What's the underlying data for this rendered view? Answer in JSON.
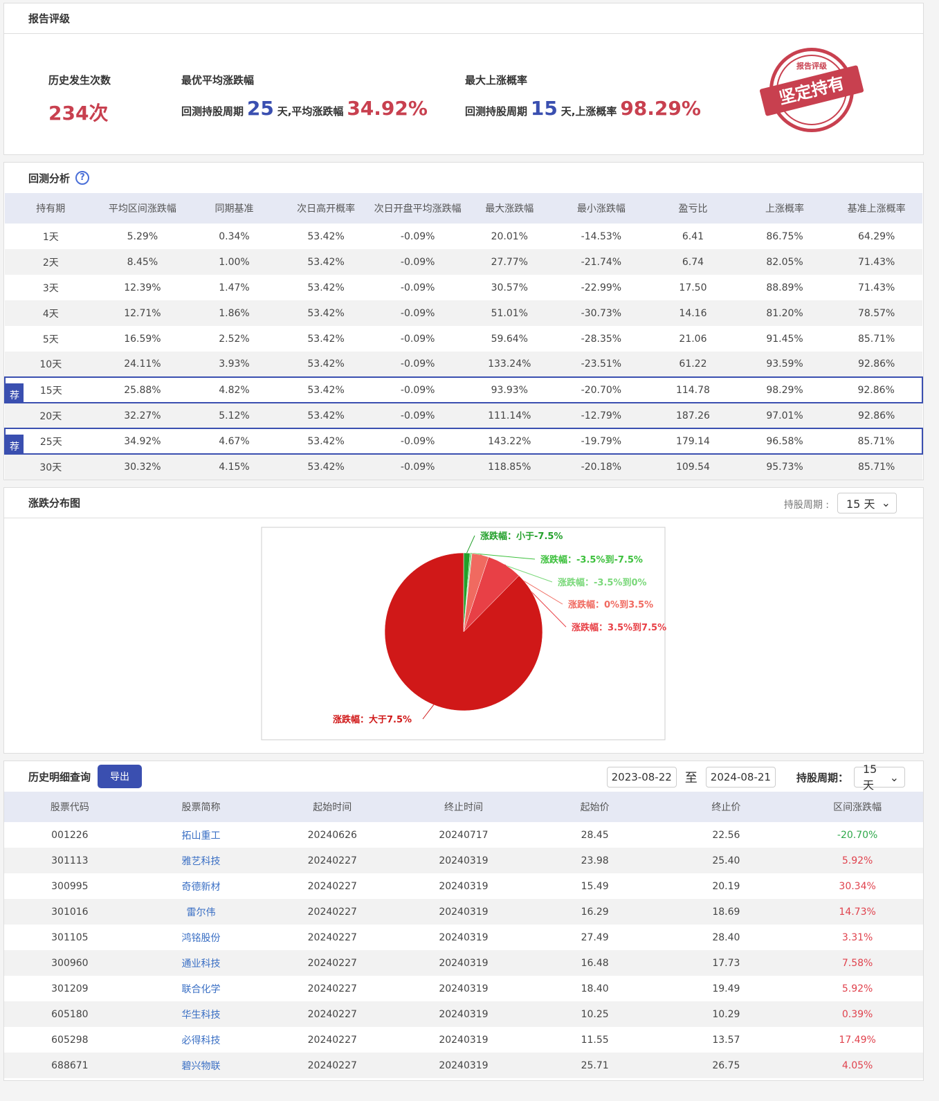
{
  "rating": {
    "title": "报告评级",
    "occ_label": "历史发生次数",
    "occ_value": "234次",
    "best_avg_label": "最优平均涨跌幅",
    "best_avg_prefix": "回测持股周期",
    "best_avg_days": "25",
    "best_avg_mid": "天,平均涨跌幅",
    "best_avg_value": "34.92%",
    "max_up_label": "最大上涨概率",
    "max_up_prefix": "回测持股周期",
    "max_up_days": "15",
    "max_up_mid": "天,上涨概率",
    "max_up_value": "98.29%",
    "stamp_top": "报告评级",
    "stamp_main": "坚定持有",
    "stamp_color": "#c8404f"
  },
  "backtest": {
    "title": "回测分析",
    "help_icon": "question-circle-icon",
    "rec_tag": "荐",
    "headers": [
      "持有期",
      "平均区间涨跌幅",
      "同期基准",
      "次日高开概率",
      "次日开盘平均涨跌幅",
      "最大涨跌幅",
      "最小涨跌幅",
      "盈亏比",
      "上涨概率",
      "基准上涨概率"
    ],
    "rows": [
      {
        "rec": false,
        "cells": [
          "1天",
          "5.29%",
          "0.34%",
          "53.42%",
          "-0.09%",
          "20.01%",
          "-14.53%",
          "6.41",
          "86.75%",
          "64.29%"
        ]
      },
      {
        "rec": false,
        "cells": [
          "2天",
          "8.45%",
          "1.00%",
          "53.42%",
          "-0.09%",
          "27.77%",
          "-21.74%",
          "6.74",
          "82.05%",
          "71.43%"
        ]
      },
      {
        "rec": false,
        "cells": [
          "3天",
          "12.39%",
          "1.47%",
          "53.42%",
          "-0.09%",
          "30.57%",
          "-22.99%",
          "17.50",
          "88.89%",
          "71.43%"
        ]
      },
      {
        "rec": false,
        "cells": [
          "4天",
          "12.71%",
          "1.86%",
          "53.42%",
          "-0.09%",
          "51.01%",
          "-30.73%",
          "14.16",
          "81.20%",
          "78.57%"
        ]
      },
      {
        "rec": false,
        "cells": [
          "5天",
          "16.59%",
          "2.52%",
          "53.42%",
          "-0.09%",
          "59.64%",
          "-28.35%",
          "21.06",
          "91.45%",
          "85.71%"
        ]
      },
      {
        "rec": false,
        "cells": [
          "10天",
          "24.11%",
          "3.93%",
          "53.42%",
          "-0.09%",
          "133.24%",
          "-23.51%",
          "61.22",
          "93.59%",
          "92.86%"
        ]
      },
      {
        "rec": true,
        "cells": [
          "15天",
          "25.88%",
          "4.82%",
          "53.42%",
          "-0.09%",
          "93.93%",
          "-20.70%",
          "114.78",
          "98.29%",
          "92.86%"
        ]
      },
      {
        "rec": false,
        "cells": [
          "20天",
          "32.27%",
          "5.12%",
          "53.42%",
          "-0.09%",
          "111.14%",
          "-12.79%",
          "187.26",
          "97.01%",
          "92.86%"
        ]
      },
      {
        "rec": true,
        "cells": [
          "25天",
          "34.92%",
          "4.67%",
          "53.42%",
          "-0.09%",
          "143.22%",
          "-19.79%",
          "179.14",
          "96.58%",
          "85.71%"
        ]
      },
      {
        "rec": false,
        "cells": [
          "30天",
          "30.32%",
          "4.15%",
          "53.42%",
          "-0.09%",
          "118.85%",
          "-20.18%",
          "109.54",
          "95.73%",
          "85.71%"
        ]
      }
    ]
  },
  "distribution": {
    "title": "涨跌分布图",
    "period_label": "持股周期 :",
    "period_value": "15 天"
  },
  "chart_data": {
    "type": "pie",
    "slices": [
      {
        "label": "涨跌幅：小于-7.5%",
        "value": 1.28,
        "color": "#22a02a"
      },
      {
        "label": "涨跌幅：-3.5%到-7.5%",
        "value": 0.21,
        "color": "#3cc03c"
      },
      {
        "label": "涨跌幅：-3.5%到0%",
        "value": 0.21,
        "color": "#7ad87a"
      },
      {
        "label": "涨跌幅：0%到3.5%",
        "value": 3.42,
        "color": "#f06a60"
      },
      {
        "label": "涨跌幅：3.5%到7.5%",
        "value": 7.26,
        "color": "#e84046"
      },
      {
        "label": "涨跌幅：大于7.5%",
        "value": 87.61,
        "color": "#d01818"
      }
    ]
  },
  "history": {
    "title": "历史明细查询",
    "export_label": "导出",
    "date_from": "2023-08-22",
    "to_label": "至",
    "date_to": "2024-08-21",
    "period_label": "持股周期：",
    "period_value": "15 天",
    "headers": [
      "股票代码",
      "股票简称",
      "起始时间",
      "终止时间",
      "起始价",
      "终止价",
      "区间涨跌幅"
    ],
    "rows": [
      [
        "001226",
        "拓山重工",
        "20240626",
        "20240717",
        "28.45",
        "22.56",
        "-20.70%"
      ],
      [
        "301113",
        "雅艺科技",
        "20240227",
        "20240319",
        "23.98",
        "25.40",
        "5.92%"
      ],
      [
        "300995",
        "奇德新材",
        "20240227",
        "20240319",
        "15.49",
        "20.19",
        "30.34%"
      ],
      [
        "301016",
        "雷尔伟",
        "20240227",
        "20240319",
        "16.29",
        "18.69",
        "14.73%"
      ],
      [
        "301105",
        "鸿铭股份",
        "20240227",
        "20240319",
        "27.49",
        "28.40",
        "3.31%"
      ],
      [
        "300960",
        "通业科技",
        "20240227",
        "20240319",
        "16.48",
        "17.73",
        "7.58%"
      ],
      [
        "301209",
        "联合化学",
        "20240227",
        "20240319",
        "18.40",
        "19.49",
        "5.92%"
      ],
      [
        "605180",
        "华生科技",
        "20240227",
        "20240319",
        "10.25",
        "10.29",
        "0.39%"
      ],
      [
        "605298",
        "必得科技",
        "20240227",
        "20240319",
        "11.55",
        "13.57",
        "17.49%"
      ],
      [
        "688671",
        "碧兴物联",
        "20240227",
        "20240319",
        "25.71",
        "26.75",
        "4.05%"
      ]
    ]
  }
}
